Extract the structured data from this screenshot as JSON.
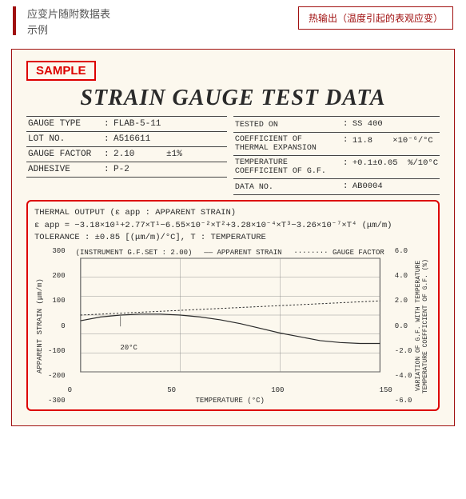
{
  "header": {
    "line1": "应变片随附数据表",
    "line2": "示例",
    "right": "热输出（温度引起的表观应变）"
  },
  "sample": "SAMPLE",
  "title": "STRAIN GAUGE TEST DATA",
  "info_left": {
    "gauge_type": {
      "label": "GAUGE TYPE",
      "value": "FLAB-5-11"
    },
    "lot_no": {
      "label": "LOT NO.",
      "value": "A516611"
    },
    "gauge_factor": {
      "label": "GAUGE FACTOR",
      "value": "2.10",
      "tol": "±1%"
    },
    "adhesive": {
      "label": "ADHESIVE",
      "value": "P-2"
    }
  },
  "info_right": {
    "tested_on": {
      "label": "TESTED ON",
      "value": "SS 400"
    },
    "cte": {
      "label": "COEFFICIENT OF\nTHERMAL EXPANSION",
      "value": "11.8",
      "unit": "×10⁻⁶/°C"
    },
    "tcgf": {
      "label": "TEMPERATURE\nCOEFFICIENT OF G.F.",
      "value": "+0.1±0.05",
      "unit": "%/10°C"
    },
    "data_no": {
      "label": "DATA NO.",
      "value": "AB0004"
    }
  },
  "chart": {
    "header1": "THERMAL OUTPUT (ε app : APPARENT STRAIN)",
    "header2": "ε app = −3.18×10¹+2.77×T¹−6.55×10⁻²×T²+3.28×10⁻⁴×T³−3.26×10⁻⁷×T⁴ (μm/m)",
    "header3": "TOLERANCE : ±0.85 [(μm/m)/°C], T : TEMPERATURE",
    "legend_left": "(INSTRUMENT G.F.SET : 2.00)",
    "legend_mid": "—— APPARENT STRAIN",
    "legend_right": "········ GAUGE FACTOR",
    "ylabel_l": "APPARENT STRAIN (μm/m)",
    "ylabel_r1": "VARIATION OF G.F. WITH TEMPERATURE",
    "ylabel_r2": "TEMPERATURE COEFFICIENT OF G.F. (%)",
    "xlabel": "TEMPERATURE (°C)",
    "xticks": [
      "0",
      "50",
      "100",
      "150"
    ],
    "yticks_l": [
      "300",
      "200",
      "100",
      "0",
      "-100",
      "-200",
      "-300"
    ],
    "yticks_r": [
      "6.0",
      "4.0",
      "2.0",
      "0.0",
      "-2.0",
      "-4.0",
      "-6.0"
    ],
    "xlim": [
      0,
      150
    ],
    "ylim_l": [
      -300,
      300
    ],
    "ylim_r": [
      -6,
      6
    ],
    "twenty_label": "20°C",
    "strain_curve": [
      [
        0,
        -30
      ],
      [
        10,
        -10
      ],
      [
        20,
        0
      ],
      [
        30,
        5
      ],
      [
        40,
        5
      ],
      [
        50,
        0
      ],
      [
        60,
        -10
      ],
      [
        70,
        -25
      ],
      [
        80,
        -45
      ],
      [
        90,
        -70
      ],
      [
        100,
        -95
      ],
      [
        110,
        -115
      ],
      [
        120,
        -135
      ],
      [
        130,
        -145
      ],
      [
        140,
        -150
      ],
      [
        150,
        -150
      ]
    ],
    "gf_curve": [
      [
        0,
        0
      ],
      [
        150,
        1.5
      ]
    ],
    "colors": {
      "grid": "#888888",
      "strain": "#2a2a2a",
      "gf": "#2a2a2a",
      "bg": "#fcf8ee"
    }
  }
}
